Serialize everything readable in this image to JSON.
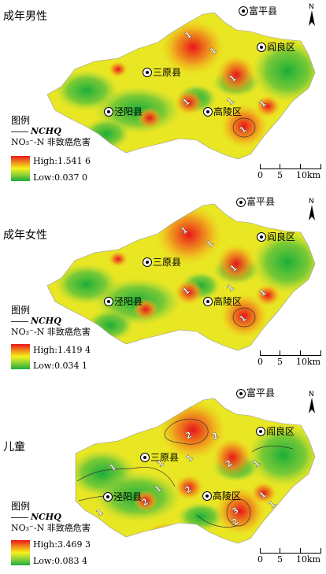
{
  "legend_title": "图例",
  "line_label": "NCHQ",
  "hazard_label": "NO₃⁻-N 非致癌危害",
  "high_prefix": "High:",
  "low_prefix": "Low:",
  "counties": {
    "fuping": "富平县",
    "yanliang": "阎良区",
    "sanyuan": "三原县",
    "jingyang": "泾阳县",
    "gaoling": "高陵区"
  },
  "scale": {
    "t0": "0",
    "t1": "5",
    "t2": "10",
    "unit": "km"
  },
  "panels": [
    {
      "title": "成年男性",
      "high": "1.541 6",
      "low": "0.037 0"
    },
    {
      "title": "成年女性",
      "high": "1.419 4",
      "low": "0.034 1"
    },
    {
      "title": "儿童",
      "high": "3.469 3",
      "low": "0.083 4"
    }
  ],
  "contour_labels": {
    "panel0": [
      "1",
      "1",
      "1",
      "1",
      "1",
      "1",
      "1"
    ],
    "panel1": [
      "1",
      "1",
      "1",
      "1",
      "1",
      "1",
      "1"
    ],
    "panel2": [
      "2",
      "2",
      "1",
      "1",
      "1",
      "2",
      "2",
      "2",
      "1",
      "1",
      "1",
      "3",
      "2",
      "1",
      "1"
    ]
  },
  "colors": {
    "high": "#e8141b",
    "mid": "#f5f21a",
    "low": "#1aae3a"
  }
}
